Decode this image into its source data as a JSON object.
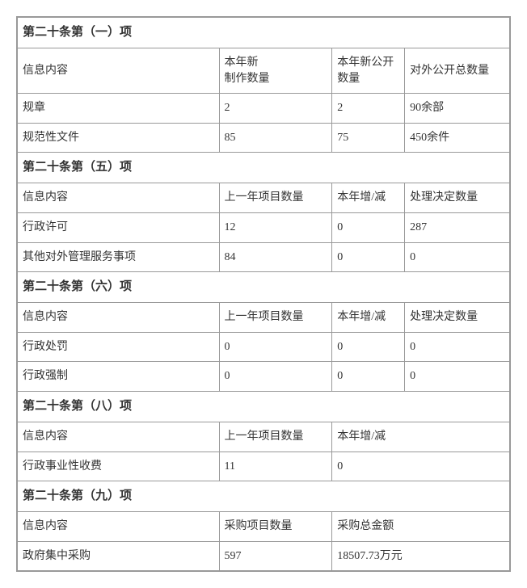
{
  "section1": {
    "title": "第二十条第（一）项",
    "headers": {
      "c1": "信息内容",
      "c2": "本年新\n制作数量",
      "c3": "本年新公开数量",
      "c4": "对外公开总数量"
    },
    "rows": [
      {
        "c1": "规章",
        "c2": "2",
        "c3": "2",
        "c4": "90余部"
      },
      {
        "c1": "规范性文件",
        "c2": "85",
        "c3": "75",
        "c4": "450余件"
      }
    ]
  },
  "section5": {
    "title": "第二十条第（五）项",
    "headers": {
      "c1": "信息内容",
      "c2": "上一年项目数量",
      "c3": "本年增/减",
      "c4": "处理决定数量"
    },
    "rows": [
      {
        "c1": "行政许可",
        "c2": "12",
        "c3": "0",
        "c4": "287"
      },
      {
        "c1": "其他对外管理服务事项",
        "c2": "84",
        "c3": "0",
        "c4": "0"
      }
    ]
  },
  "section6": {
    "title": "第二十条第（六）项",
    "headers": {
      "c1": "信息内容",
      "c2": "上一年项目数量",
      "c3": "本年增/减",
      "c4": "处理决定数量"
    },
    "rows": [
      {
        "c1": "行政处罚",
        "c2": "0",
        "c3": "0",
        "c4": "0"
      },
      {
        "c1": "行政强制",
        "c2": "0",
        "c3": "0",
        "c4": "0"
      }
    ]
  },
  "section8": {
    "title": "第二十条第（八）项",
    "headers": {
      "c1": "信息内容",
      "c2": "上一年项目数量",
      "c3": "本年增/减"
    },
    "rows": [
      {
        "c1": "行政事业性收费",
        "c2": "11",
        "c3": "0"
      }
    ]
  },
  "section9": {
    "title": "第二十条第（九）项",
    "headers": {
      "c1": "信息内容",
      "c2": "采购项目数量",
      "c3": "采购总金额"
    },
    "rows": [
      {
        "c1": "政府集中采购",
        "c2": "597",
        "c3": "18507.73万元"
      }
    ]
  }
}
